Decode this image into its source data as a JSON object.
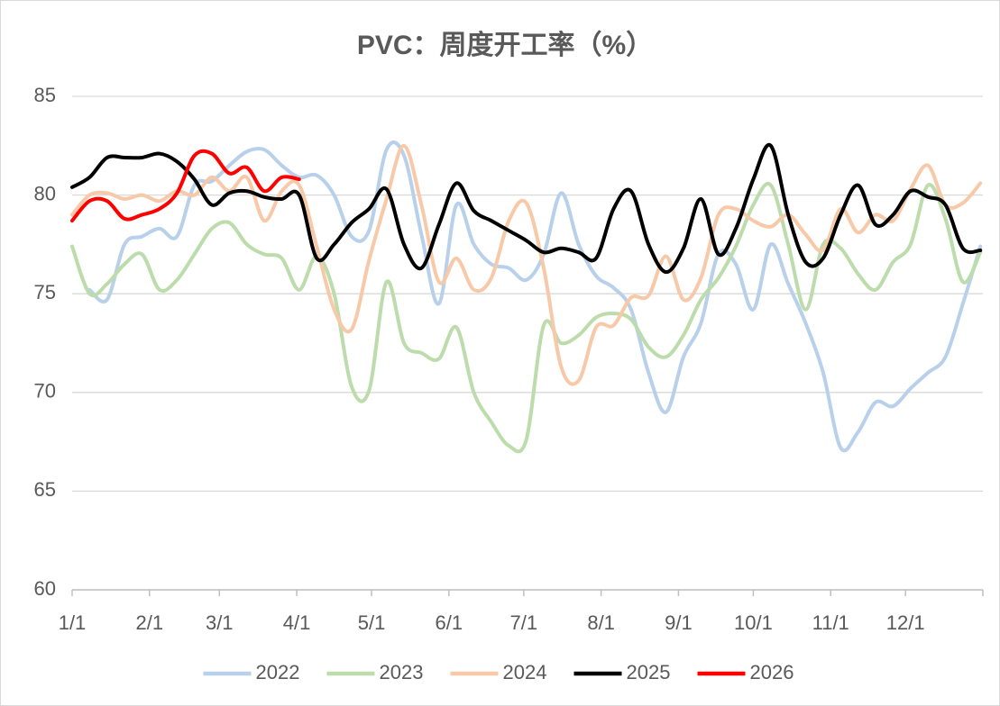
{
  "chart_data": {
    "type": "line",
    "title": "PVC：周度开工率（%）",
    "x": [
      1,
      8,
      15,
      22,
      29,
      36,
      43,
      50,
      57,
      64,
      71,
      78,
      85,
      92,
      99,
      106,
      113,
      120,
      127,
      134,
      141,
      148,
      155,
      162,
      169,
      176,
      183,
      190,
      197,
      204,
      211,
      218,
      225,
      232,
      239,
      246,
      253,
      260,
      267,
      274,
      281,
      288,
      295,
      302,
      309,
      316,
      323,
      330,
      337,
      344,
      351,
      358,
      365
    ],
    "xlim": [
      1,
      366
    ],
    "xticks": [
      {
        "value": 1,
        "label": "1/1"
      },
      {
        "value": 32,
        "label": "2/1"
      },
      {
        "value": 60,
        "label": "3/1"
      },
      {
        "value": 91,
        "label": "4/1"
      },
      {
        "value": 121,
        "label": "5/1"
      },
      {
        "value": 152,
        "label": "6/1"
      },
      {
        "value": 182,
        "label": "7/1"
      },
      {
        "value": 213,
        "label": "8/1"
      },
      {
        "value": 244,
        "label": "9/1"
      },
      {
        "value": 274,
        "label": "10/1"
      },
      {
        "value": 305,
        "label": "11/1"
      },
      {
        "value": 335,
        "label": "12/1"
      }
    ],
    "ylim": [
      60,
      85
    ],
    "yticks": [
      60,
      65,
      70,
      75,
      80,
      85
    ],
    "grid": true,
    "legend": "bottom",
    "series": [
      {
        "name": "2022",
        "color": "#b8d0ea",
        "values": [
          null,
          75.2,
          74.7,
          77.5,
          77.9,
          78.3,
          77.9,
          80.5,
          80.7,
          81.5,
          82.2,
          82.3,
          81.5,
          80.9,
          81.0,
          80.0,
          77.9,
          78.2,
          82.3,
          82.0,
          78.0,
          74.5,
          79.5,
          77.5,
          76.5,
          76.3,
          75.7,
          77.0,
          80.1,
          77.5,
          75.9,
          75.3,
          74.2,
          71.0,
          69.0,
          71.8,
          73.5,
          77.0,
          76.5,
          74.2,
          77.5,
          75.5,
          73.5,
          71.0,
          67.2,
          68.0,
          69.5,
          69.3,
          70.2,
          71.0,
          71.8,
          74.5,
          77.4
        ]
      },
      {
        "name": "2023",
        "color": "#bcdcac",
        "values": [
          77.4,
          75.0,
          75.5,
          76.5,
          77.0,
          75.2,
          75.7,
          77.0,
          78.3,
          78.6,
          77.5,
          77.0,
          76.8,
          75.2,
          76.9,
          75.0,
          70.3,
          70.1,
          75.6,
          72.5,
          72.0,
          71.7,
          73.3,
          70.0,
          68.5,
          67.3,
          67.6,
          73.4,
          72.5,
          72.9,
          73.8,
          74.0,
          73.7,
          72.3,
          71.8,
          72.9,
          74.7,
          75.8,
          77.4,
          79.5,
          80.5,
          77.5,
          74.2,
          77.5,
          77.3,
          76.0,
          75.2,
          76.6,
          77.5,
          80.5,
          78.8,
          75.6,
          77.1
        ]
      },
      {
        "name": "2024",
        "color": "#f8c9a8",
        "values": [
          79.0,
          80.0,
          80.1,
          79.8,
          80.0,
          79.7,
          80.2,
          80.0,
          80.9,
          80.2,
          80.9,
          78.7,
          80.2,
          80.5,
          77.4,
          74.2,
          73.2,
          76.7,
          79.8,
          82.5,
          79.5,
          75.6,
          76.8,
          75.2,
          75.8,
          78.7,
          79.6,
          76.3,
          71.3,
          70.6,
          73.3,
          73.4,
          74.8,
          74.9,
          76.9,
          74.7,
          75.8,
          79.0,
          79.3,
          78.7,
          78.4,
          79.0,
          78.0,
          77.2,
          79.3,
          78.1,
          79.0,
          78.7,
          80.3,
          81.5,
          79.5,
          79.6,
          80.6
        ]
      },
      {
        "name": "2025",
        "color": "#000000",
        "values": [
          80.4,
          80.9,
          81.9,
          81.9,
          81.9,
          82.1,
          81.7,
          80.8,
          79.5,
          80.1,
          80.2,
          79.9,
          79.8,
          80.0,
          76.8,
          77.5,
          78.6,
          79.3,
          80.3,
          77.5,
          76.3,
          78.5,
          80.6,
          79.2,
          78.7,
          78.2,
          77.7,
          77.1,
          77.3,
          77.1,
          76.8,
          79.3,
          80.2,
          77.5,
          76.1,
          77.3,
          79.8,
          77.0,
          78.3,
          80.8,
          82.5,
          79.0,
          76.6,
          76.8,
          79.0,
          80.5,
          78.5,
          79.0,
          80.2,
          79.9,
          79.5,
          77.3,
          77.2
        ]
      },
      {
        "name": "2026",
        "color": "#ff0000",
        "values": [
          78.7,
          79.7,
          79.7,
          78.8,
          79.0,
          79.3,
          80.1,
          82.0,
          82.1,
          81.1,
          81.4,
          80.2,
          80.9,
          80.8,
          null,
          null,
          null,
          null,
          null,
          null,
          null,
          null,
          null,
          null,
          null,
          null,
          null,
          null,
          null,
          null,
          null,
          null,
          null,
          null,
          null,
          null,
          null,
          null,
          null,
          null,
          null,
          null,
          null,
          null,
          null,
          null,
          null,
          null,
          null,
          null,
          null,
          null,
          null
        ]
      }
    ]
  }
}
